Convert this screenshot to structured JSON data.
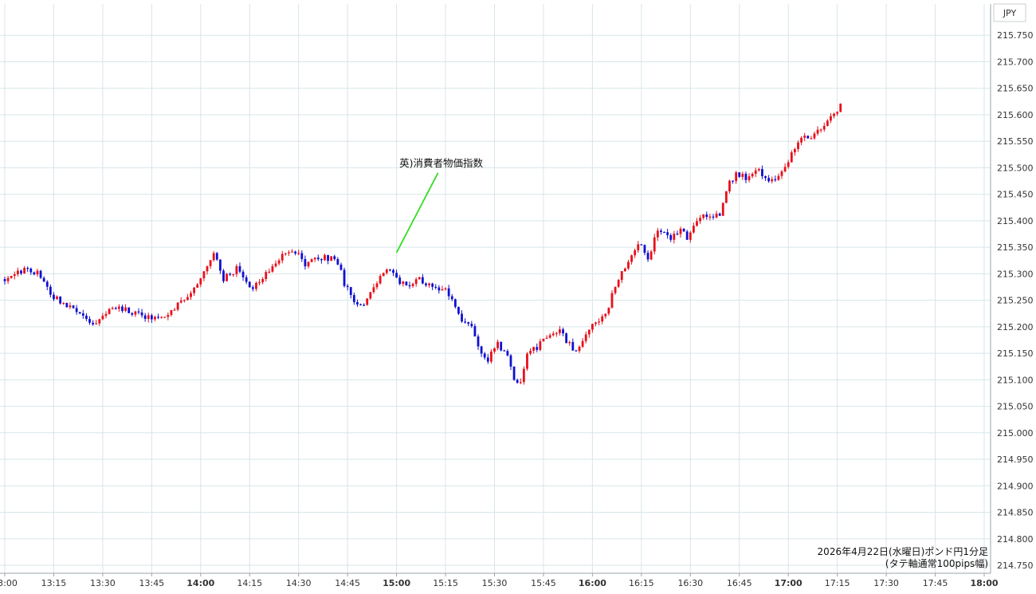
{
  "chart_data": {
    "type": "candlestick",
    "currency_label": "JPY",
    "ylim": [
      214.75,
      215.8
    ],
    "y_ticks": [
      "215.750",
      "215.700",
      "215.650",
      "215.600",
      "215.550",
      "215.500",
      "215.450",
      "215.400",
      "215.350",
      "215.300",
      "215.250",
      "215.200",
      "215.150",
      "215.100",
      "215.050",
      "215.000",
      "214.950",
      "214.900",
      "214.850",
      "214.800",
      "214.750"
    ],
    "x_range_minutes": [
      780,
      1080
    ],
    "x_ticks": [
      {
        "t": 780,
        "label": "13:00"
      },
      {
        "t": 795,
        "label": "13:15"
      },
      {
        "t": 810,
        "label": "13:30"
      },
      {
        "t": 825,
        "label": "13:45"
      },
      {
        "t": 840,
        "label": "14:00"
      },
      {
        "t": 855,
        "label": "14:15"
      },
      {
        "t": 870,
        "label": "14:30"
      },
      {
        "t": 885,
        "label": "14:45"
      },
      {
        "t": 900,
        "label": "15:00"
      },
      {
        "t": 915,
        "label": "15:15"
      },
      {
        "t": 930,
        "label": "15:30"
      },
      {
        "t": 945,
        "label": "15:45"
      },
      {
        "t": 960,
        "label": "16:00"
      },
      {
        "t": 975,
        "label": "16:15"
      },
      {
        "t": 990,
        "label": "16:30"
      },
      {
        "t": 1005,
        "label": "16:45"
      },
      {
        "t": 1020,
        "label": "17:00"
      },
      {
        "t": 1035,
        "label": "17:15"
      },
      {
        "t": 1050,
        "label": "17:30"
      },
      {
        "t": 1065,
        "label": "17:45"
      },
      {
        "t": 1080,
        "label": "18:00"
      }
    ],
    "bold_x_ticks": [
      "14:00",
      "15:00",
      "16:00",
      "17:00",
      "18:00"
    ],
    "close_path": [
      [
        780,
        215.29
      ],
      [
        782,
        215.3
      ],
      [
        787,
        215.31
      ],
      [
        790,
        215.3
      ],
      [
        793,
        215.27
      ],
      [
        798,
        215.24
      ],
      [
        803,
        215.23
      ],
      [
        806,
        215.21
      ],
      [
        808,
        215.21
      ],
      [
        813,
        215.24
      ],
      [
        818,
        215.23
      ],
      [
        823,
        215.22
      ],
      [
        828,
        215.22
      ],
      [
        833,
        215.24
      ],
      [
        839,
        215.28
      ],
      [
        842,
        215.32
      ],
      [
        844,
        215.34
      ],
      [
        847,
        215.29
      ],
      [
        851,
        215.31
      ],
      [
        856,
        215.27
      ],
      [
        860,
        215.3
      ],
      [
        864,
        215.33
      ],
      [
        869,
        215.34
      ],
      [
        872,
        215.32
      ],
      [
        875,
        215.33
      ],
      [
        880,
        215.33
      ],
      [
        883,
        215.31
      ],
      [
        884,
        215.28
      ],
      [
        887,
        215.25
      ],
      [
        889,
        215.24
      ],
      [
        892,
        215.26
      ],
      [
        897,
        215.31
      ],
      [
        900,
        215.29
      ],
      [
        903,
        215.28
      ],
      [
        907,
        215.29
      ],
      [
        910,
        215.28
      ],
      [
        915,
        215.27
      ],
      [
        917,
        215.25
      ],
      [
        919,
        215.22
      ],
      [
        923,
        215.2
      ],
      [
        925,
        215.16
      ],
      [
        928,
        215.14
      ],
      [
        931,
        215.17
      ],
      [
        934,
        215.14
      ],
      [
        936,
        215.1
      ],
      [
        938,
        215.09
      ],
      [
        940,
        215.15
      ],
      [
        943,
        215.16
      ],
      [
        946,
        215.18
      ],
      [
        950,
        215.19
      ],
      [
        955,
        215.15
      ],
      [
        958,
        215.19
      ],
      [
        962,
        215.21
      ],
      [
        965,
        215.24
      ],
      [
        967,
        215.28
      ],
      [
        970,
        215.31
      ],
      [
        972,
        215.34
      ],
      [
        974,
        215.36
      ],
      [
        977,
        215.33
      ],
      [
        980,
        215.38
      ],
      [
        984,
        215.37
      ],
      [
        987,
        215.38
      ],
      [
        989,
        215.37
      ],
      [
        992,
        215.4
      ],
      [
        995,
        215.41
      ],
      [
        999,
        215.41
      ],
      [
        1002,
        215.47
      ],
      [
        1004,
        215.49
      ],
      [
        1008,
        215.48
      ],
      [
        1011,
        215.5
      ],
      [
        1014,
        215.47
      ],
      [
        1017,
        215.48
      ],
      [
        1020,
        215.51
      ],
      [
        1023,
        215.55
      ],
      [
        1027,
        215.56
      ],
      [
        1031,
        215.58
      ],
      [
        1034,
        215.6
      ],
      [
        1036,
        215.62
      ]
    ],
    "annotation": {
      "text": "英)消費者物価指数",
      "time": 900,
      "price": 215.34
    },
    "caption_line1": "2026年4月22日(水曜日)ポンド円1分足",
    "caption_line2": "(タテ軸通常100pips幅)",
    "up_color": "#e8101a",
    "down_color": "#1010d0",
    "grid_color": "#d7e5ea",
    "annotation_line_color": "#33dd22"
  }
}
